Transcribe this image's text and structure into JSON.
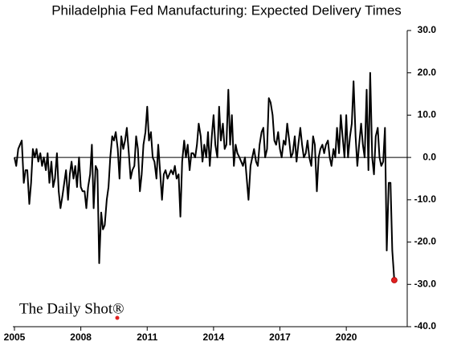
{
  "chart_data": {
    "type": "line",
    "title": "Philadelphia Fed Manufacturing: Expected Delivery Times",
    "annotations": [
      "The Daily Shot®"
    ],
    "color": "#000000",
    "highlight_color": "#e02020",
    "xlim": [
      2005,
      2022.5
    ],
    "xticks": [
      2005,
      2008,
      2011,
      2014,
      2017,
      2020
    ],
    "ylim": [
      -40,
      30
    ],
    "yticks": [
      {
        "value": -40,
        "label": "-40.0"
      },
      {
        "value": -30,
        "label": "-30.0"
      },
      {
        "value": -20,
        "label": "-20.0"
      },
      {
        "value": -10,
        "label": "-10.0"
      },
      {
        "value": 0,
        "label": "0.0"
      },
      {
        "value": 10,
        "label": "10.0"
      },
      {
        "value": 20,
        "label": "20.0"
      },
      {
        "value": 30,
        "label": "30.0"
      }
    ],
    "series": [
      {
        "name": "Expected Delivery Times",
        "color": "#000000",
        "x": [
          2005.0,
          2005.08,
          2005.17,
          2005.25,
          2005.33,
          2005.42,
          2005.5,
          2005.58,
          2005.67,
          2005.75,
          2005.83,
          2005.92,
          2006.0,
          2006.08,
          2006.17,
          2006.25,
          2006.33,
          2006.42,
          2006.5,
          2006.58,
          2006.67,
          2006.75,
          2006.83,
          2006.92,
          2007.0,
          2007.08,
          2007.17,
          2007.25,
          2007.33,
          2007.42,
          2007.5,
          2007.58,
          2007.67,
          2007.75,
          2007.83,
          2007.92,
          2008.0,
          2008.08,
          2008.17,
          2008.25,
          2008.33,
          2008.42,
          2008.5,
          2008.58,
          2008.67,
          2008.75,
          2008.83,
          2008.92,
          2009.0,
          2009.08,
          2009.17,
          2009.25,
          2009.33,
          2009.42,
          2009.5,
          2009.58,
          2009.67,
          2009.75,
          2009.83,
          2009.92,
          2010.0,
          2010.08,
          2010.17,
          2010.25,
          2010.33,
          2010.42,
          2010.5,
          2010.58,
          2010.67,
          2010.75,
          2010.83,
          2010.92,
          2011.0,
          2011.08,
          2011.17,
          2011.25,
          2011.33,
          2011.42,
          2011.5,
          2011.58,
          2011.67,
          2011.75,
          2011.83,
          2011.92,
          2012.0,
          2012.08,
          2012.17,
          2012.25,
          2012.33,
          2012.42,
          2012.5,
          2012.58,
          2012.67,
          2012.75,
          2012.83,
          2012.92,
          2013.0,
          2013.08,
          2013.17,
          2013.25,
          2013.33,
          2013.42,
          2013.5,
          2013.58,
          2013.67,
          2013.75,
          2013.83,
          2013.92,
          2014.0,
          2014.08,
          2014.17,
          2014.25,
          2014.33,
          2014.42,
          2014.5,
          2014.58,
          2014.67,
          2014.75,
          2014.83,
          2014.92,
          2015.0,
          2015.08,
          2015.17,
          2015.25,
          2015.33,
          2015.42,
          2015.5,
          2015.58,
          2015.67,
          2015.75,
          2015.83,
          2015.92,
          2016.0,
          2016.08,
          2016.17,
          2016.25,
          2016.33,
          2016.42,
          2016.5,
          2016.58,
          2016.67,
          2016.75,
          2016.83,
          2016.92,
          2017.0,
          2017.08,
          2017.17,
          2017.25,
          2017.33,
          2017.42,
          2017.5,
          2017.58,
          2017.67,
          2017.75,
          2017.83,
          2017.92,
          2018.0,
          2018.08,
          2018.17,
          2018.25,
          2018.33,
          2018.42,
          2018.5,
          2018.58,
          2018.67,
          2018.75,
          2018.83,
          2018.92,
          2019.0,
          2019.08,
          2019.17,
          2019.25,
          2019.33,
          2019.42,
          2019.5,
          2019.58,
          2019.67,
          2019.75,
          2019.83,
          2019.92,
          2020.0,
          2020.08,
          2020.17,
          2020.25,
          2020.33,
          2020.42,
          2020.5,
          2020.58,
          2020.67,
          2020.75,
          2020.83,
          2020.92,
          2021.0,
          2021.08,
          2021.17,
          2021.25,
          2021.33,
          2021.42,
          2021.5,
          2021.58,
          2021.67,
          2021.75,
          2021.83,
          2021.92,
          2022.0,
          2022.08,
          2022.17
        ],
        "values": [
          0,
          -2,
          2,
          3,
          4,
          -6,
          -3,
          -3,
          -11,
          -6,
          2,
          0,
          2,
          -1,
          1,
          -2,
          0,
          -3,
          1,
          -6,
          -1,
          -7,
          -5,
          1,
          -8,
          -12,
          -9,
          -6,
          -3,
          -10,
          -4,
          -1,
          -5,
          -2,
          -7,
          0,
          -7,
          -8,
          -8,
          -12,
          -7,
          -4,
          3,
          -12,
          -2,
          -3,
          -25,
          -13,
          -17,
          -16,
          -10,
          -7,
          0,
          5,
          4,
          6,
          2,
          -5,
          5,
          2,
          4,
          7,
          1,
          -5,
          -3,
          -2,
          5,
          2,
          -8,
          -4,
          3,
          6,
          12,
          4,
          6,
          0,
          -1,
          -5,
          3,
          -3,
          -10,
          -4,
          -3,
          -5,
          -4,
          -3,
          -4,
          -2,
          -5,
          -4,
          -14,
          -1,
          4,
          0,
          3,
          -3,
          1,
          1,
          0,
          3,
          8,
          5,
          -1,
          3,
          0,
          6,
          -2,
          5,
          10,
          3,
          0,
          12,
          4,
          8,
          2,
          3,
          16,
          3,
          10,
          -2,
          3,
          1,
          0,
          -1,
          -2,
          0,
          -5,
          -10,
          -2,
          0,
          2,
          -1,
          -2,
          3,
          6,
          7,
          0,
          2,
          14,
          13,
          10,
          4,
          3,
          6,
          2,
          0,
          4,
          3,
          8,
          4,
          0,
          1,
          5,
          -1,
          3,
          7,
          3,
          0,
          1,
          4,
          0,
          -2,
          5,
          3,
          -8,
          0,
          2,
          3,
          1,
          3,
          4,
          0,
          -2,
          2,
          0,
          7,
          1,
          10,
          5,
          0,
          10,
          0,
          5,
          8,
          18,
          5,
          -2,
          3,
          8,
          3,
          0,
          16,
          -3,
          20,
          0,
          -4,
          5,
          7,
          0,
          -2,
          -1,
          7,
          -22,
          -6,
          -6,
          -22,
          -29
        ]
      }
    ]
  }
}
